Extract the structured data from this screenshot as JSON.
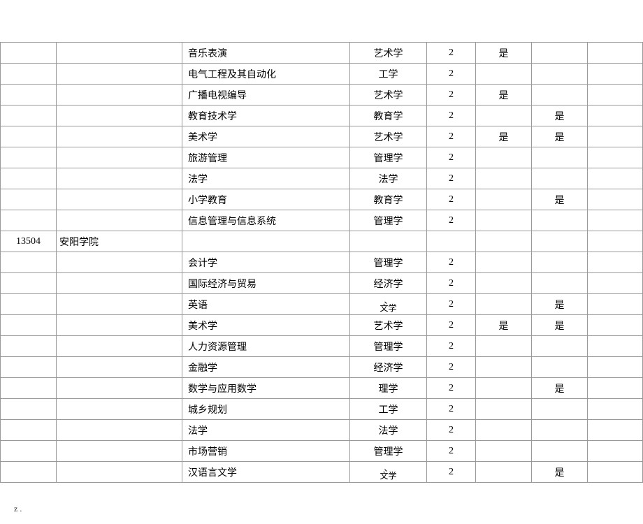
{
  "footer": "z .",
  "columns": {
    "widths": [
      "80px",
      "180px",
      "240px",
      "110px",
      "70px",
      "80px",
      "80px",
      "auto"
    ]
  },
  "rows": [
    {
      "code": "",
      "school": "",
      "major": "音乐表演",
      "category": "艺术学",
      "num": "2",
      "flag1": "是",
      "flag2": "",
      "extra": ""
    },
    {
      "code": "",
      "school": "",
      "major": "电气工程及其自动化",
      "category": "工学",
      "num": "2",
      "flag1": "",
      "flag2": "",
      "extra": ""
    },
    {
      "code": "",
      "school": "",
      "major": "广播电视编导",
      "category": "艺术学",
      "num": "2",
      "flag1": "是",
      "flag2": "",
      "extra": ""
    },
    {
      "code": "",
      "school": "",
      "major": "教育技术学",
      "category": "教育学",
      "num": "2",
      "flag1": "",
      "flag2": "是",
      "extra": ""
    },
    {
      "code": "",
      "school": "",
      "major": "美术学",
      "category": "艺术学",
      "num": "2",
      "flag1": "是",
      "flag2": "是",
      "extra": ""
    },
    {
      "code": "",
      "school": "",
      "major": "旅游管理",
      "category": "管理学",
      "num": "2",
      "flag1": "",
      "flag2": "",
      "extra": ""
    },
    {
      "code": "",
      "school": "",
      "major": "法学",
      "category": "法学",
      "num": "2",
      "flag1": "",
      "flag2": "",
      "extra": ""
    },
    {
      "code": "",
      "school": "",
      "major": "小学教育",
      "category": "教育学",
      "num": "2",
      "flag1": "",
      "flag2": "是",
      "extra": ""
    },
    {
      "code": "",
      "school": "",
      "major": "信息管理与信息系统",
      "category": "管理学",
      "num": "2",
      "flag1": "",
      "flag2": "",
      "extra": ""
    },
    {
      "code": "13504",
      "school": "安阳学院",
      "major": "",
      "category": "",
      "num": "",
      "flag1": "",
      "flag2": "",
      "extra": ""
    },
    {
      "code": "",
      "school": "",
      "major": "会计学",
      "category": "管理学",
      "num": "2",
      "flag1": "",
      "flag2": "",
      "extra": ""
    },
    {
      "code": "",
      "school": "",
      "major": "国际经济与贸易",
      "category": "经济学",
      "num": "2",
      "flag1": "",
      "flag2": "",
      "extra": ""
    },
    {
      "code": "",
      "school": "",
      "major": "英语",
      "category": "、\n文学",
      "num": "2",
      "flag1": "",
      "flag2": "是",
      "extra": ""
    },
    {
      "code": "",
      "school": "",
      "major": "美术学",
      "category": "艺术学",
      "num": "2",
      "flag1": "是",
      "flag2": "是",
      "extra": ""
    },
    {
      "code": "",
      "school": "",
      "major": "人力资源管理",
      "category": "管理学",
      "num": "2",
      "flag1": "",
      "flag2": "",
      "extra": ""
    },
    {
      "code": "",
      "school": "",
      "major": "金融学",
      "category": "经济学",
      "num": "2",
      "flag1": "",
      "flag2": "",
      "extra": ""
    },
    {
      "code": "",
      "school": "",
      "major": "数学与应用数学",
      "category": "理学",
      "num": "2",
      "flag1": "",
      "flag2": "是",
      "extra": ""
    },
    {
      "code": "",
      "school": "",
      "major": "城乡规划",
      "category": "工学",
      "num": "2",
      "flag1": "",
      "flag2": "",
      "extra": ""
    },
    {
      "code": "",
      "school": "",
      "major": "法学",
      "category": "法学",
      "num": "2",
      "flag1": "",
      "flag2": "",
      "extra": ""
    },
    {
      "code": "",
      "school": "",
      "major": "市场营销",
      "category": "管理学",
      "num": "2",
      "flag1": "",
      "flag2": "",
      "extra": ""
    },
    {
      "code": "",
      "school": "",
      "major": "汉语言文学",
      "category": "、\n文学",
      "num": "2",
      "flag1": "",
      "flag2": "是",
      "extra": ""
    }
  ]
}
